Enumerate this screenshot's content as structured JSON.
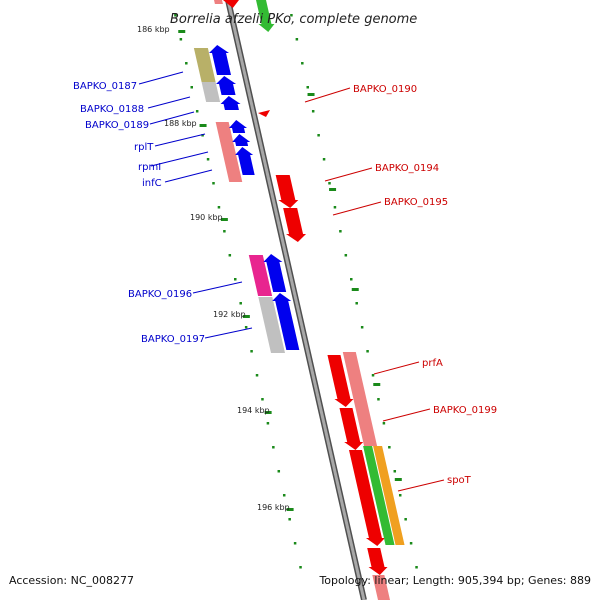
{
  "title": "Borrelia afzelii PKo, complete genome",
  "footer": {
    "accession": "Accession: NC_008277",
    "topology": "Topology: linear; Length: 905,394 bp; Genes: 889"
  },
  "colors": {
    "plus_strand_label": "#0000cc",
    "minus_strand_label": "#cc0000",
    "backbone": "#909090",
    "tick": "#1a8a1a",
    "gene_blue": "#0000ee",
    "gene_red": "#ee0000",
    "gene_pink": "#ee8080",
    "gene_magenta": "#e8258f",
    "gene_olive": "#b8b068",
    "gene_grey": "#c0c0c0",
    "gene_green": "#33bb33",
    "gene_orange": "#f0a020"
  },
  "kbp_labels": [
    "186 kbp",
    "188 kbp",
    "190 kbp",
    "192 kbp",
    "194 kbp",
    "196 kbp"
  ],
  "gene_labels_left": [
    "BAPKO_0187",
    "BAPKO_0188",
    "BAPKO_0189",
    "rplT",
    "rpmI",
    "infC",
    "BAPKO_0196",
    "BAPKO_0197"
  ],
  "gene_labels_right": [
    "BAPKO_0190",
    "BAPKO_0194",
    "BAPKO_0195",
    "prfA",
    "BAPKO_0199",
    "spoT"
  ]
}
